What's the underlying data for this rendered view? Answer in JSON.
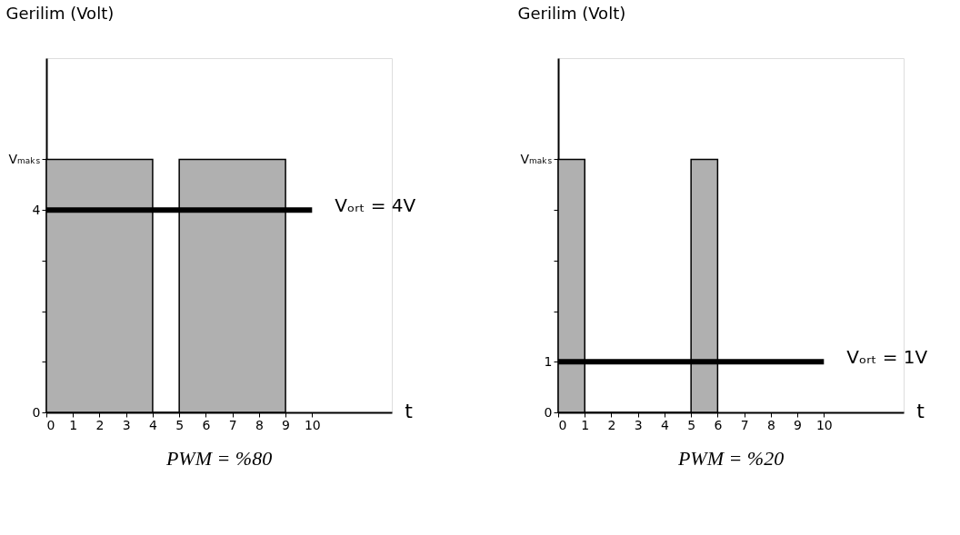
{
  "chart_data": [
    {
      "type": "area",
      "ylabel": "Gerilim (Volt)",
      "xlabel": "t",
      "xlim": [
        0,
        13
      ],
      "ylim": [
        0,
        7
      ],
      "xticks": [
        0,
        1,
        2,
        3,
        4,
        5,
        6,
        7,
        8,
        9,
        10
      ],
      "yticks": [
        0,
        {
          "value": 1,
          "label": null
        },
        {
          "value": 2,
          "label": null
        },
        {
          "value": 3,
          "label": null
        },
        4,
        {
          "value": 5,
          "label": "Vₘₐₖₛ"
        }
      ],
      "grid": false,
      "series": [
        {
          "color": "#b0b0b0",
          "x": [
            0,
            0,
            4,
            4,
            5,
            5,
            9,
            9
          ],
          "values": [
            0,
            5,
            5,
            0,
            0,
            5,
            5,
            0
          ]
        },
        {
          "type": "line",
          "name": "Vₒᵣₜ = 4V",
          "color": "#000000",
          "x": [
            0,
            10
          ],
          "values": [
            4,
            4
          ]
        }
      ],
      "annotations": [
        "PWM = %80"
      ]
    },
    {
      "type": "area",
      "ylabel": "Gerilim (Volt)",
      "xlabel": "t",
      "xlim": [
        0,
        13
      ],
      "ylim": [
        0,
        7
      ],
      "xticks": [
        0,
        1,
        2,
        3,
        4,
        5,
        6,
        7,
        8,
        9,
        10
      ],
      "yticks": [
        0,
        1,
        {
          "value": 2,
          "label": null
        },
        {
          "value": 3,
          "label": null
        },
        {
          "value": 4,
          "label": null
        },
        {
          "value": 5,
          "label": "Vₘₐₖₛ"
        }
      ],
      "grid": false,
      "series": [
        {
          "color": "#b0b0b0",
          "x": [
            0,
            0,
            1,
            1,
            5,
            5,
            6,
            6
          ],
          "values": [
            0,
            5,
            5,
            0,
            0,
            5,
            5,
            0
          ]
        },
        {
          "type": "line",
          "name": "Vₒᵣₜ = 1V",
          "color": "#000000",
          "x": [
            0,
            10
          ],
          "values": [
            1,
            1
          ]
        }
      ],
      "annotations": [
        "PWM = %20"
      ]
    }
  ]
}
